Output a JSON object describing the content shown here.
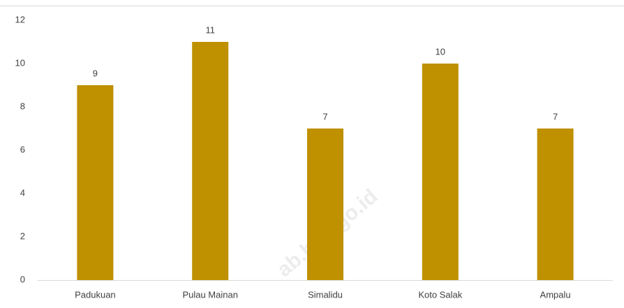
{
  "chart_data": {
    "type": "bar",
    "categories": [
      "Padukuan",
      "Pulau Mainan",
      "Simalidu",
      "Koto Salak",
      "Ampalu"
    ],
    "values": [
      9,
      11,
      7,
      10,
      7
    ],
    "color": "#bf9000",
    "ylim": [
      0,
      12
    ],
    "yticks": [
      0,
      2,
      4,
      6,
      8,
      10,
      12
    ],
    "grid": false,
    "watermark": "ab.bps.go.id"
  }
}
